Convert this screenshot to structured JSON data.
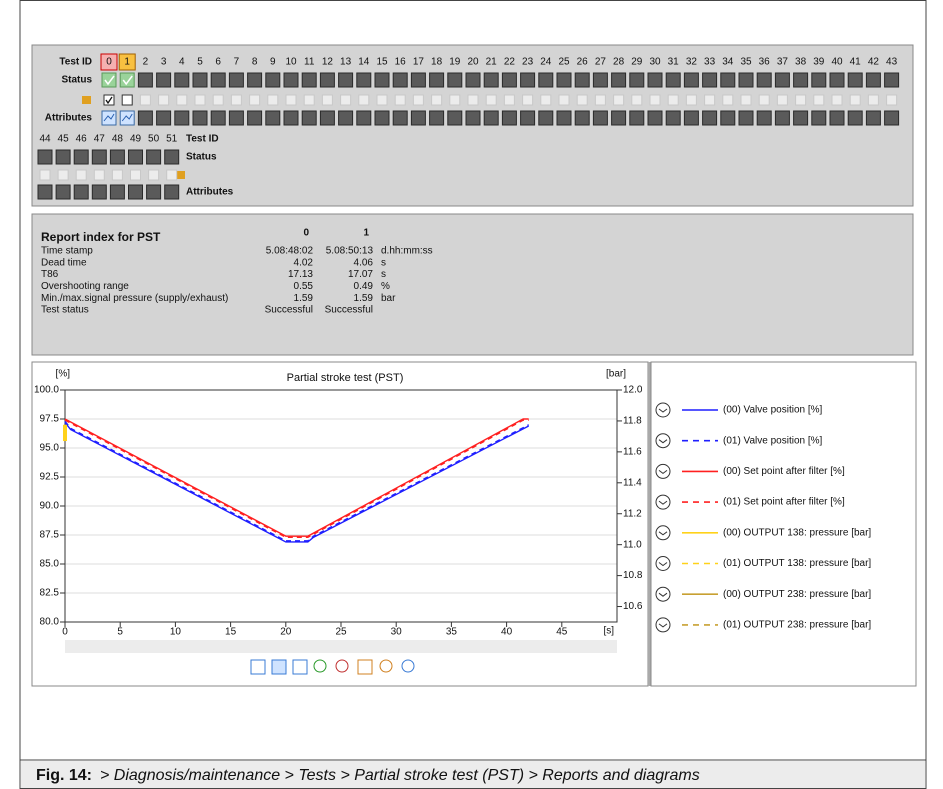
{
  "grid": {
    "labels": {
      "test_id": "Test ID",
      "status": "Status",
      "attributes": "Attributes"
    },
    "test_ids": [
      0,
      1,
      2,
      3,
      4,
      5,
      6,
      7,
      8,
      9,
      10,
      11,
      12,
      13,
      14,
      15,
      16,
      17,
      18,
      19,
      20,
      21,
      22,
      23,
      24,
      25,
      26,
      27,
      28,
      29,
      30,
      31,
      32,
      33,
      34,
      35,
      36,
      37,
      38,
      39,
      40,
      41,
      42,
      43,
      44,
      45,
      46,
      47,
      48,
      49,
      50,
      51
    ]
  },
  "report": {
    "title": "Report index for PST",
    "columns": [
      0,
      1
    ],
    "rows": [
      {
        "label": "Time stamp",
        "values": [
          "5.08:48:02",
          "5.08:50:13"
        ],
        "unit": "d.hh:mm:ss"
      },
      {
        "label": "Dead time",
        "values": [
          4.02,
          4.06
        ],
        "unit": "s"
      },
      {
        "label": "T86",
        "values": [
          17.13,
          17.07
        ],
        "unit": "s"
      },
      {
        "label": "Overshooting range",
        "values": [
          0.55,
          0.49
        ],
        "unit": "%"
      },
      {
        "label": "Min./max.signal pressure (supply/exhaust)",
        "values": [
          1.59,
          1.59
        ],
        "unit": "bar"
      },
      {
        "label": "Test status",
        "values": [
          "Successful",
          "Successful"
        ]
      }
    ]
  },
  "chart_data": {
    "type": "line",
    "title": "Partial stroke test (PST)",
    "y_label": "[%]",
    "y2_label": "[bar]",
    "x_label": "[s]",
    "xlim": [
      0,
      50
    ],
    "xticks": [
      0,
      5,
      10,
      15,
      20,
      25,
      30,
      35,
      40,
      45
    ],
    "ylim": [
      80,
      100
    ],
    "yticks": [
      {
        "value": 80,
        "label": "80.0"
      },
      82.5,
      {
        "value": 85,
        "label": "85.0"
      },
      87.5,
      {
        "value": 90,
        "label": "90.0"
      },
      92.5,
      {
        "value": 95,
        "label": "95.0"
      },
      97.5,
      {
        "value": 100,
        "label": "100.0"
      }
    ],
    "y2lim": [
      10.5,
      12
    ],
    "y2ticks": [
      10.6,
      10.8,
      {
        "value": 11,
        "label": "11.0"
      },
      11.2,
      11.4,
      11.6,
      11.8,
      {
        "value": 12,
        "label": "12.0"
      }
    ],
    "grid": true,
    "series": [
      {
        "name": "(00) Valve position [%]",
        "color": "#1f1fff",
        "dashed": false,
        "x": [
          0,
          0.5,
          20,
          22,
          22.5,
          42
        ],
        "values": [
          97.2,
          96.6,
          86.9,
          86.9,
          87.3,
          96.9
        ]
      },
      {
        "name": "(01) Valve position [%]",
        "color": "#1f1fff",
        "dashed": true,
        "x": [
          0,
          0.5,
          20,
          22,
          22.5,
          42
        ],
        "values": [
          97.3,
          96.7,
          87,
          87,
          87.4,
          97
        ]
      },
      {
        "name": "(00) Set point after filter [%]",
        "color": "#ff2020",
        "dashed": false,
        "x": [
          0,
          20,
          22,
          41.5,
          42
        ],
        "values": [
          97.5,
          87.4,
          87.4,
          97.5,
          97.5
        ]
      },
      {
        "name": "(01) Set point after filter [%]",
        "color": "#ff2020",
        "dashed": true,
        "x": [
          0,
          20,
          22,
          41.5,
          42
        ],
        "values": [
          97.4,
          87.3,
          87.3,
          97.4,
          97.4
        ]
      },
      {
        "name": "(00) OUTPUT 138: pressure [bar]",
        "color": "#ffd21a",
        "dashed": false,
        "x": [
          0,
          0
        ],
        "values": [
          95.6,
          97
        ]
      },
      {
        "name": "(01) OUTPUT 138: pressure [bar]",
        "color": "#ffd21a",
        "dashed": true,
        "x": [],
        "values": []
      },
      {
        "name": "(00) OUTPUT 238: pressure [bar]",
        "color": "#c8a032",
        "dashed": false,
        "x": [],
        "values": []
      },
      {
        "name": "(01) OUTPUT 238: pressure [bar]",
        "color": "#c8a032",
        "dashed": true,
        "x": [],
        "values": []
      }
    ]
  },
  "caption": {
    "label": "Fig. 14:",
    "text": "> Diagnosis/maintenance > Tests > Partial stroke test (PST) > Reports and diagrams"
  }
}
